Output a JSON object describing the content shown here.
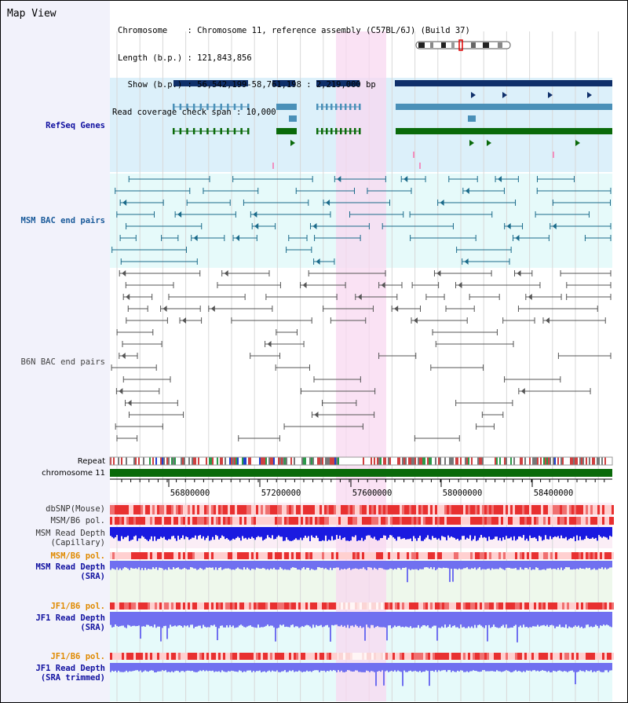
{
  "header": {
    "title": "Map View",
    "info_lines": [
      "Chromosome    : Chromosome 11, reference assembly (C57BL/6J) (Build 37)",
      "Length (b.p.) : 121,843,856",
      "  Show (b.p.) : 56,542,199-58,761,198 : 2,219,000 bp",
      "Read coverage check span : 10,000"
    ]
  },
  "tracks": {
    "refseq": "RefSeq Genes",
    "msm_bac": "MSM BAC end pairs",
    "b6n_bac": "B6N BAC end pairs",
    "repeat": "Repeat",
    "chromosome": "chromosome 11",
    "dbsnp": "dbSNP(Mouse)",
    "msm_b6_pol": "MSM/B6 pol.",
    "msm_depth_cap_1": "MSM Read Depth",
    "msm_depth_cap_2": "(Capillary)",
    "msm_b6_pol_2": "MSM/B6 pol.",
    "msm_depth_sra_1": "MSM Read Depth",
    "msm_depth_sra_2": "(SRA)",
    "jf1_b6_pol": "JF1/B6 pol.",
    "jf1_depth_sra_1": "JF1 Read Depth",
    "jf1_depth_sra_2": "(SRA)",
    "jf1_b6_pol_2": "JF1/B6 pol.",
    "jf1_depth_trim_1": "JF1 Read Depth",
    "jf1_depth_trim_2": "(SRA trimmed)"
  },
  "scale": {
    "ticks": [
      "56800000",
      "57200000",
      "57600000",
      "58000000",
      "58400000"
    ]
  },
  "colors": {
    "refseq_bg": "#dcf0fa",
    "msm_bg": "#e6fafa",
    "highlight": "#f8d8f0",
    "gene_dark": "#0f2f6a",
    "gene_mid": "#4a90b8",
    "gene_green": "#0a6a0a",
    "bac_msm": "#1a6a8a",
    "bac_b6n": "#555555",
    "chromosome": "#0a6a0a",
    "depth": "#1a1ae0",
    "depth_light": "#7070f0",
    "pol_red": "#e83030",
    "label_blue": "#1010a0",
    "label_orange": "#e08a00",
    "label_gray": "#333333"
  }
}
